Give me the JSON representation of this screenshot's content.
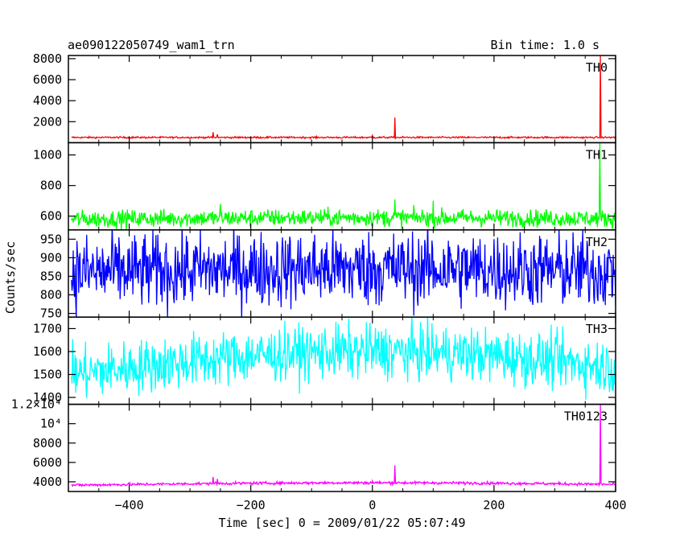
{
  "title": "ae090122050749_wam1_trn",
  "bin_time": "Bin time: 1.0 s",
  "ylabel": "Counts/sec",
  "xlabel": "Time [sec] 0 = 2009/01/22 05:07:49",
  "chart_data": {
    "type": "line",
    "grid": false,
    "x_range": [
      -500,
      400
    ],
    "x_ticks": [
      -400,
      -200,
      0,
      200,
      400
    ],
    "x_tick_labels": [
      "−400",
      "−200",
      "0",
      "200",
      "400"
    ],
    "x_bin_sec": 1.0,
    "panels": [
      {
        "name": "TH0",
        "color": "#ff0000",
        "ylim": [
          0,
          8300
        ],
        "y_ticks": [
          2000,
          4000,
          6000,
          8000
        ],
        "y_tick_labels": [
          "2000",
          "4000",
          "6000",
          "8000"
        ],
        "baseline": 500,
        "noise": 40,
        "trend": 0,
        "spikes": [
          [
            -262,
            1000
          ],
          [
            -255,
            800
          ],
          [
            -415,
            600
          ],
          [
            0,
            700
          ],
          [
            37,
            2400
          ],
          [
            375,
            8300
          ]
        ]
      },
      {
        "name": "TH1",
        "color": "#00ff00",
        "ylim": [
          510,
          1080
        ],
        "y_ticks": [
          600,
          800,
          1000
        ],
        "y_tick_labels": [
          "600",
          "800",
          "1000"
        ],
        "baseline": 580,
        "noise": 28,
        "trend": 10,
        "spikes": [
          [
            37,
            710
          ],
          [
            100,
            700
          ],
          [
            -250,
            680
          ],
          [
            374,
            1080
          ]
        ]
      },
      {
        "name": "TH2",
        "color": "#0000ff",
        "ylim": [
          740,
          975
        ],
        "y_ticks": [
          750,
          800,
          850,
          900,
          950
        ],
        "y_tick_labels": [
          "750",
          "800",
          "850",
          "900",
          "950"
        ],
        "baseline": 860,
        "noise": 50,
        "trend": 10,
        "spikes": []
      },
      {
        "name": "TH3",
        "color": "#00ffff",
        "ylim": [
          1370,
          1750
        ],
        "y_ticks": [
          1400,
          1500,
          1600,
          1700
        ],
        "y_tick_labels": [
          "1400",
          "1500",
          "1600",
          "1700"
        ],
        "baseline": 1500,
        "noise": 58,
        "trend": 100,
        "spikes": []
      },
      {
        "name": "TH0123",
        "color": "#ff00ff",
        "ylim": [
          3000,
          12000
        ],
        "y_ticks": [
          4000,
          6000,
          8000,
          10000,
          12000
        ],
        "y_tick_labels": [
          "4000",
          "6000",
          "8000",
          "10⁴",
          "1.2×10⁴"
        ],
        "baseline": 3650,
        "noise": 70,
        "trend": 250,
        "spikes": [
          [
            -262,
            4500
          ],
          [
            -255,
            4300
          ],
          [
            0,
            4100
          ],
          [
            37,
            5700
          ],
          [
            375,
            12000
          ]
        ]
      }
    ]
  }
}
